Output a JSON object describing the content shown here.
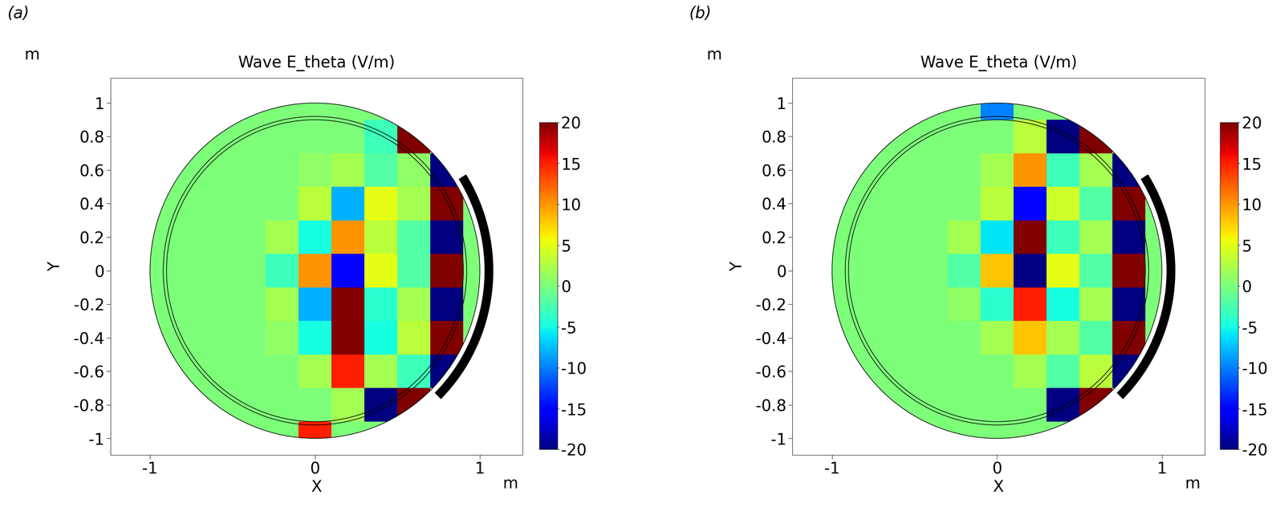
{
  "chart_data": [
    {
      "type": "heatmap",
      "panel_label": "(a)",
      "title": "Wave E_theta (V/m)",
      "x_label": "X",
      "y_label": "Y",
      "x_unit_label": "m",
      "y_unit_label": "m",
      "xlim": [
        -1.24,
        1.26
      ],
      "ylim": [
        -1.1,
        1.15
      ],
      "xticks": [
        -1,
        0,
        1
      ],
      "yticks": [
        -1,
        -0.8,
        -0.6,
        -0.4,
        -0.2,
        0,
        0.2,
        0.4,
        0.6,
        0.8,
        1
      ],
      "x": [
        -1,
        -0.8,
        -0.6,
        -0.4,
        -0.2,
        0,
        0.2,
        0.4,
        0.6,
        0.8,
        1
      ],
      "y": [
        -1,
        -0.8,
        -0.6,
        -0.4,
        -0.2,
        0,
        0.2,
        0.4,
        0.6,
        0.8,
        1
      ],
      "cells": [
        [
          null,
          null,
          null,
          null,
          null,
          15,
          null,
          null,
          null,
          null,
          null
        ],
        [
          null,
          null,
          0,
          0,
          0,
          0,
          2,
          -20,
          20,
          null,
          null
        ],
        [
          null,
          0,
          0,
          0,
          0,
          2,
          15,
          2,
          -3,
          -20,
          null
        ],
        [
          null,
          0,
          0,
          0,
          1,
          -5,
          20,
          -5,
          3,
          20,
          null
        ],
        [
          null,
          0,
          0,
          0,
          2,
          -8,
          20,
          -4,
          2,
          -20,
          null
        ],
        [
          0,
          0,
          0,
          0,
          -3,
          10,
          -15,
          5,
          -2,
          20,
          0
        ],
        [
          null,
          0,
          0,
          0,
          2,
          -5,
          10,
          3,
          -2,
          -20,
          null
        ],
        [
          null,
          0,
          0,
          0,
          0,
          3,
          -8,
          5,
          2,
          20,
          null
        ],
        [
          null,
          0,
          0,
          0,
          0,
          1,
          2,
          -2,
          1,
          -20,
          null
        ],
        [
          null,
          null,
          0,
          0,
          0,
          0,
          0,
          -3,
          20,
          null,
          null
        ],
        [
          null,
          null,
          null,
          null,
          null,
          0,
          null,
          null,
          null,
          null,
          null
        ]
      ],
      "colorbar_range": [
        -20,
        20
      ],
      "colorbar_ticks": [
        -20,
        -15,
        -10,
        -5,
        0,
        5,
        10,
        15,
        20
      ]
    },
    {
      "type": "heatmap",
      "panel_label": "(b)",
      "title": "Wave E_theta (V/m)",
      "x_label": "X",
      "y_label": "Y",
      "x_unit_label": "m",
      "y_unit_label": "m",
      "xlim": [
        -1.24,
        1.26
      ],
      "ylim": [
        -1.1,
        1.15
      ],
      "xticks": [
        -1,
        0,
        1
      ],
      "yticks": [
        -1,
        -0.8,
        -0.6,
        -0.4,
        -0.2,
        0,
        0.2,
        0.4,
        0.6,
        0.8,
        1
      ],
      "x": [
        -1,
        -0.8,
        -0.6,
        -0.4,
        -0.2,
        0,
        0.2,
        0.4,
        0.6,
        0.8,
        1
      ],
      "y": [
        -1,
        -0.8,
        -0.6,
        -0.4,
        -0.2,
        0,
        0.2,
        0.4,
        0.6,
        0.8,
        1
      ],
      "cells": [
        [
          null,
          null,
          null,
          null,
          null,
          0,
          null,
          null,
          null,
          null,
          null
        ],
        [
          null,
          null,
          0,
          0,
          0,
          0,
          0,
          -20,
          20,
          null,
          null
        ],
        [
          null,
          0,
          0,
          0,
          0,
          0,
          2,
          -2,
          3,
          -20,
          null
        ],
        [
          null,
          0,
          0,
          0,
          0,
          2,
          8,
          2,
          -2,
          20,
          null
        ],
        [
          null,
          0,
          0,
          0,
          1,
          -4,
          15,
          -5,
          2,
          -20,
          null
        ],
        [
          0,
          0,
          0,
          0,
          -2,
          8,
          -20,
          5,
          -2,
          20,
          0
        ],
        [
          null,
          0,
          0,
          0,
          2,
          -6,
          20,
          -3,
          2,
          -20,
          null
        ],
        [
          null,
          0,
          0,
          0,
          0,
          3,
          -15,
          4,
          -2,
          20,
          null
        ],
        [
          null,
          0,
          0,
          0,
          0,
          2,
          10,
          -3,
          2,
          -20,
          null
        ],
        [
          null,
          null,
          0,
          0,
          0,
          0,
          3,
          -20,
          20,
          null,
          null
        ],
        [
          null,
          null,
          null,
          null,
          null,
          -10,
          null,
          null,
          null,
          null,
          null
        ]
      ],
      "colorbar_range": [
        -20,
        20
      ],
      "colorbar_ticks": [
        -20,
        -15,
        -10,
        -5,
        0,
        5,
        10,
        15,
        20
      ]
    }
  ]
}
